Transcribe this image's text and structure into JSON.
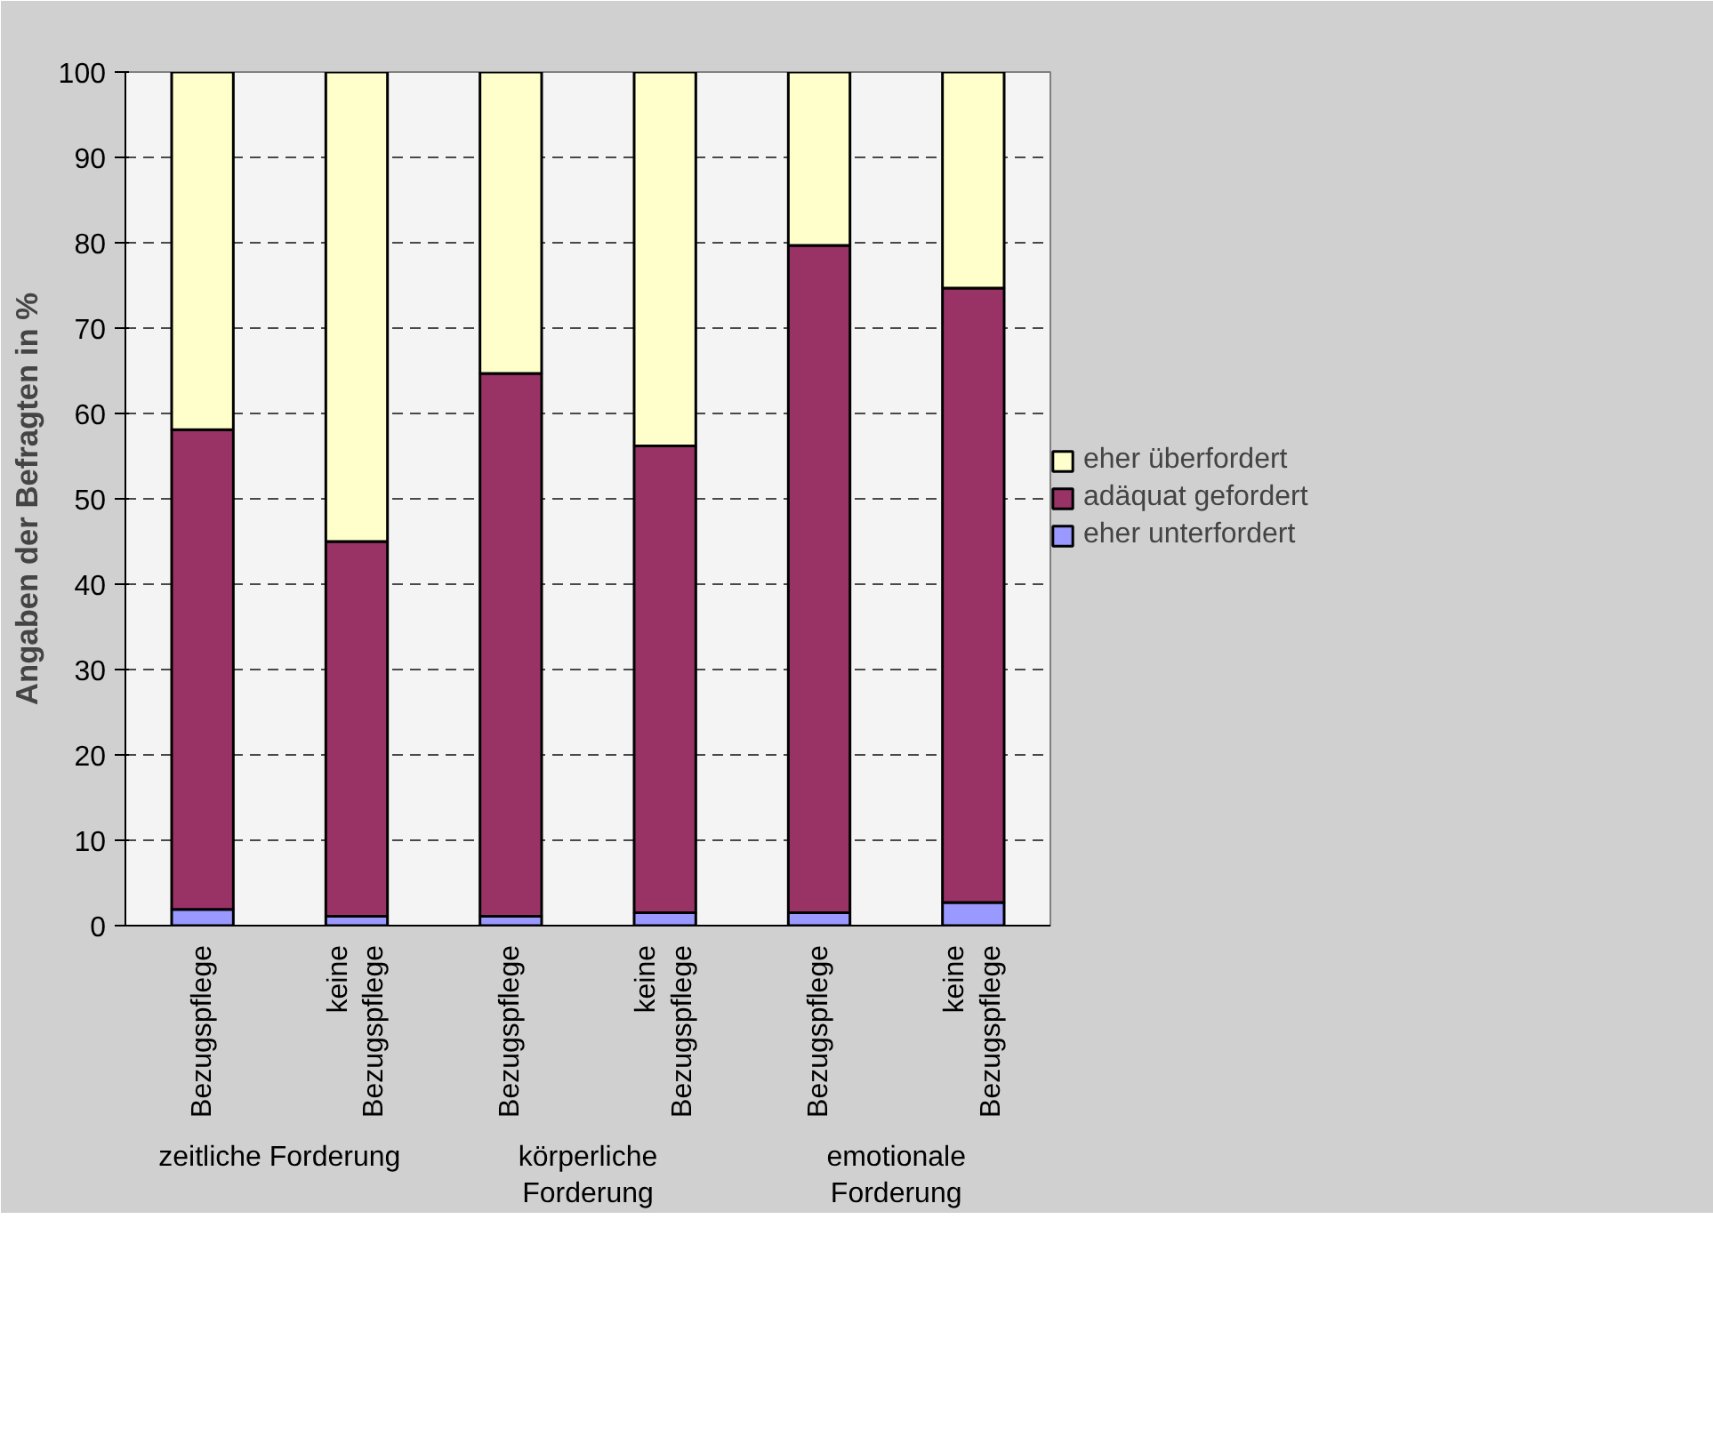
{
  "chart_data": {
    "type": "bar",
    "stacked": true,
    "ylabel": "Angaben der Befragten in %",
    "categories": [
      "Bezugspflege",
      "keine Bezugspflege",
      "Bezugspflege",
      "keine Bezugspflege",
      "Bezugspflege",
      "keine Bezugspflege"
    ],
    "annotations": [
      "zeitliche Forderung",
      "körperliche Forderung",
      "emotionale Forderung"
    ],
    "series": [
      {
        "name": "eher unterfordert",
        "color": "#9999ff",
        "values": [
          1.9,
          1.1,
          1.1,
          1.5,
          1.5,
          2.7
        ]
      },
      {
        "name": "adäquat gefordert",
        "color": "#993366",
        "values": [
          56.2,
          43.9,
          63.6,
          54.7,
          78.2,
          72.0
        ]
      },
      {
        "name": "eher überfordert",
        "color": "#ffffcc",
        "values": [
          41.9,
          55.0,
          35.3,
          43.8,
          20.3,
          25.3
        ]
      }
    ],
    "ylim": [
      0,
      100
    ],
    "yticks": [
      0,
      10,
      20,
      30,
      40,
      50,
      60,
      70,
      80,
      90,
      100
    ],
    "grid": "y",
    "legend": "right"
  }
}
